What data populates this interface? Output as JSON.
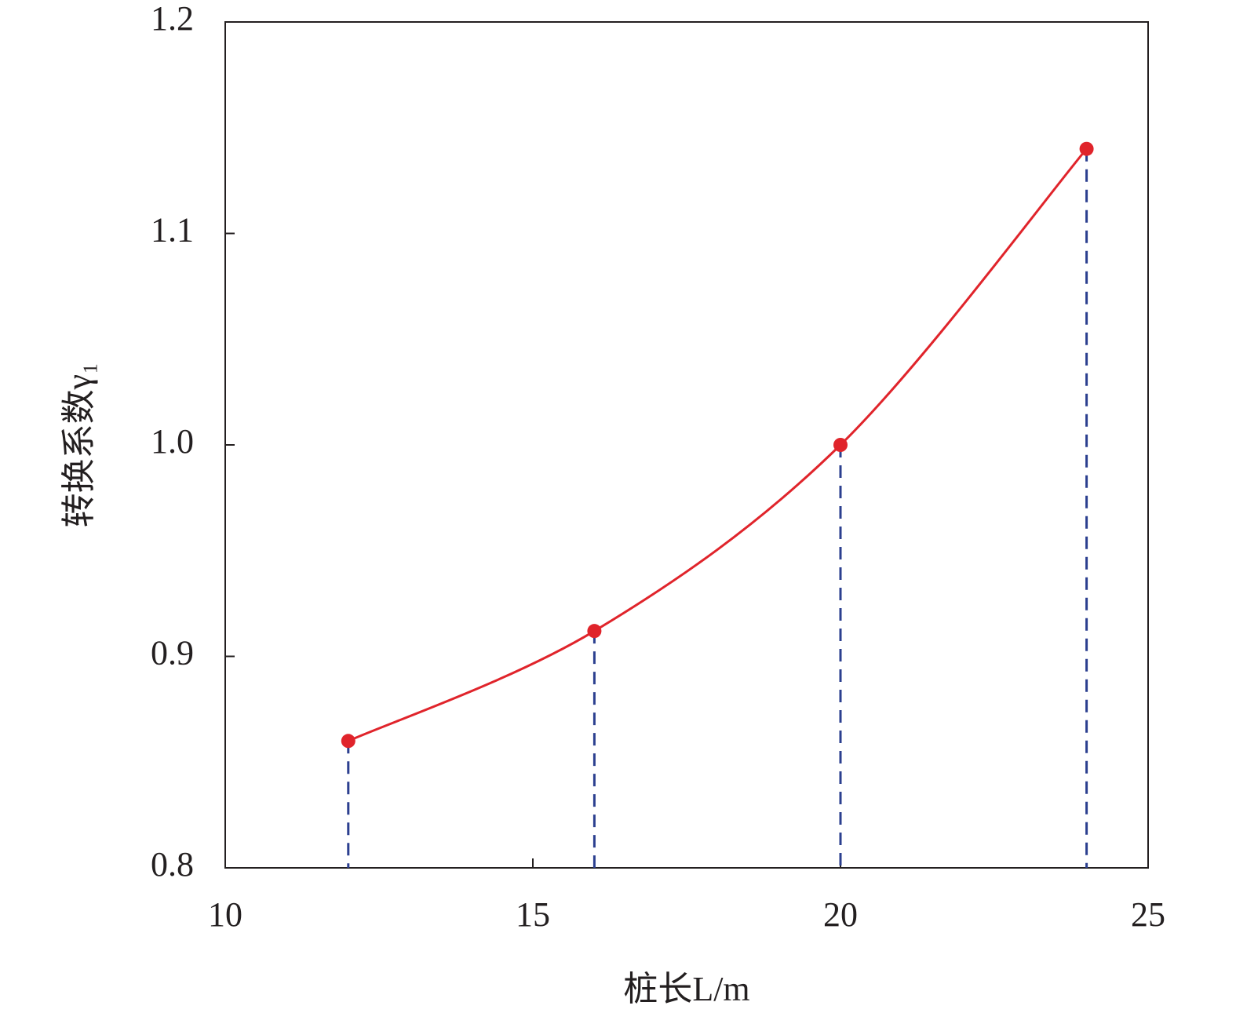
{
  "chart_data": {
    "type": "line",
    "x_label": "桩长L/m",
    "y_label": "转换系数γ₁",
    "x": [
      12,
      16,
      20,
      24
    ],
    "series": [
      {
        "color": "#e0242b",
        "values": [
          0.86,
          0.912,
          1.0,
          1.14
        ]
      }
    ],
    "drop_line_color": "#2b3f8f",
    "xlim": [
      10,
      25
    ],
    "xticks": [
      10,
      15,
      20,
      25
    ],
    "ylim": [
      0.8,
      1.2
    ],
    "yticks": [
      0.8,
      0.9,
      {
        "value": 1,
        "label": "1.0"
      },
      1.1,
      1.2
    ]
  }
}
